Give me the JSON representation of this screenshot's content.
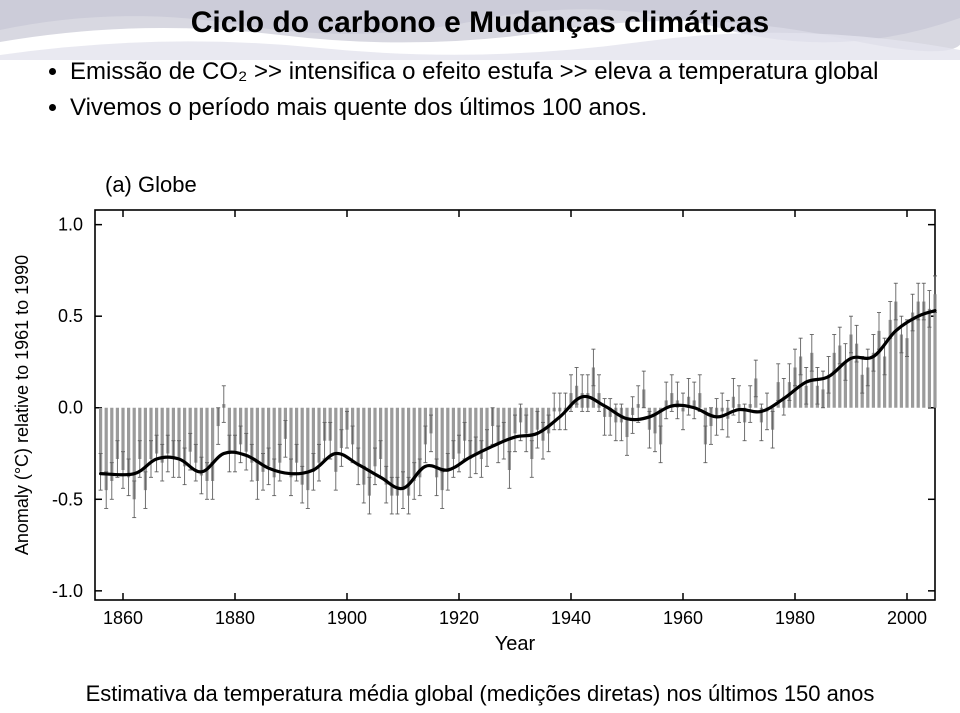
{
  "banner": {
    "wave_colors": [
      "#d8d8e4",
      "#b4b4c0",
      "#e4e4ee",
      "#c8c8d4"
    ],
    "bg": "#ffffff"
  },
  "title": "Ciclo do carbono e Mudanças climáticas",
  "bullets": [
    "Emissão de CO₂ >> intensifica o efeito estufa >> eleva a temperatura global",
    "Vivemos o período mais quente dos últimos 100 anos."
  ],
  "caption": "Estimativa da temperatura média global (medições diretas) nos últimos 150 anos",
  "chart": {
    "type": "line-with-bars",
    "panel_label": "(a)  Globe",
    "panel_label_fontsize": 22,
    "ylabel": "Anomaly (°C) relative to 1961 to 1990",
    "ylabel_fontsize": 18,
    "xlabel": "Year",
    "xlabel_fontsize": 20,
    "axis_fontsize": 18,
    "background_color": "#ffffff",
    "axis_color": "#000000",
    "bar_color": "#9b9b9b",
    "bar_width": 3.2,
    "bar_errorcap_color": "#606060",
    "line_color": "#000000",
    "line_width": 3.2,
    "tick_len": 7,
    "xlim": [
      1855,
      2005
    ],
    "ylim": [
      -1.05,
      1.08
    ],
    "xticks": [
      1860,
      1880,
      1900,
      1920,
      1940,
      1960,
      1980,
      2000
    ],
    "yticks": [
      -1.0,
      -0.5,
      0.0,
      0.5,
      1.0
    ],
    "years": [
      1856,
      1857,
      1858,
      1859,
      1860,
      1861,
      1862,
      1863,
      1864,
      1865,
      1866,
      1867,
      1868,
      1869,
      1870,
      1871,
      1872,
      1873,
      1874,
      1875,
      1876,
      1877,
      1878,
      1879,
      1880,
      1881,
      1882,
      1883,
      1884,
      1885,
      1886,
      1887,
      1888,
      1889,
      1890,
      1891,
      1892,
      1893,
      1894,
      1895,
      1896,
      1897,
      1898,
      1899,
      1900,
      1901,
      1902,
      1903,
      1904,
      1905,
      1906,
      1907,
      1908,
      1909,
      1910,
      1911,
      1912,
      1913,
      1914,
      1915,
      1916,
      1917,
      1918,
      1919,
      1920,
      1921,
      1922,
      1923,
      1924,
      1925,
      1926,
      1927,
      1928,
      1929,
      1930,
      1931,
      1932,
      1933,
      1934,
      1935,
      1936,
      1937,
      1938,
      1939,
      1940,
      1941,
      1942,
      1943,
      1944,
      1945,
      1946,
      1947,
      1948,
      1949,
      1950,
      1951,
      1952,
      1953,
      1954,
      1955,
      1956,
      1957,
      1958,
      1959,
      1960,
      1961,
      1962,
      1963,
      1964,
      1965,
      1966,
      1967,
      1968,
      1969,
      1970,
      1971,
      1972,
      1973,
      1974,
      1975,
      1976,
      1977,
      1978,
      1979,
      1980,
      1981,
      1982,
      1983,
      1984,
      1985,
      1986,
      1987,
      1988,
      1989,
      1990,
      1991,
      1992,
      1993,
      1994,
      1995,
      1996,
      1997,
      1998,
      1999,
      2000,
      2001,
      2002,
      2003,
      2004,
      2005
    ],
    "anomalies": [
      -0.35,
      -0.45,
      -0.4,
      -0.28,
      -0.34,
      -0.38,
      -0.5,
      -0.28,
      -0.45,
      -0.28,
      -0.25,
      -0.3,
      -0.25,
      -0.28,
      -0.28,
      -0.32,
      -0.24,
      -0.3,
      -0.37,
      -0.4,
      -0.4,
      -0.1,
      0.02,
      -0.25,
      -0.25,
      -0.2,
      -0.24,
      -0.3,
      -0.4,
      -0.35,
      -0.32,
      -0.38,
      -0.3,
      -0.17,
      -0.38,
      -0.3,
      -0.42,
      -0.45,
      -0.35,
      -0.3,
      -0.18,
      -0.18,
      -0.35,
      -0.22,
      -0.12,
      -0.2,
      -0.32,
      -0.42,
      -0.48,
      -0.32,
      -0.28,
      -0.42,
      -0.48,
      -0.48,
      -0.45,
      -0.48,
      -0.4,
      -0.38,
      -0.2,
      -0.14,
      -0.38,
      -0.45,
      -0.35,
      -0.28,
      -0.25,
      -0.18,
      -0.28,
      -0.26,
      -0.28,
      -0.22,
      -0.1,
      -0.2,
      -0.18,
      -0.34,
      -0.14,
      -0.08,
      -0.14,
      -0.28,
      -0.12,
      -0.18,
      -0.14,
      -0.02,
      -0.02,
      -0.02,
      0.08,
      0.12,
      0.08,
      0.08,
      0.22,
      0.08,
      -0.05,
      -0.05,
      -0.08,
      -0.08,
      -0.16,
      -0.04,
      0.02,
      0.1,
      -0.12,
      -0.14,
      -0.2,
      0.04,
      0.08,
      0.04,
      -0.02,
      0.06,
      0.04,
      0.08,
      -0.2,
      -0.1,
      -0.05,
      -0.02,
      -0.06,
      0.06,
      0.02,
      -0.08,
      0.02,
      0.16,
      -0.08,
      -0.02,
      -0.12,
      0.14,
      0.06,
      0.14,
      0.22,
      0.28,
      0.12,
      0.3,
      0.12,
      0.1,
      0.18,
      0.3,
      0.34,
      0.25,
      0.4,
      0.35,
      0.18,
      0.22,
      0.3,
      0.42,
      0.28,
      0.48,
      0.58,
      0.4,
      0.38,
      0.52,
      0.58,
      0.58,
      0.54,
      0.62
    ],
    "error_half": 0.1,
    "smoothed": [
      [
        1856,
        -0.36
      ],
      [
        1862,
        -0.36
      ],
      [
        1866,
        -0.28
      ],
      [
        1870,
        -0.28
      ],
      [
        1874,
        -0.35
      ],
      [
        1878,
        -0.25
      ],
      [
        1882,
        -0.26
      ],
      [
        1886,
        -0.33
      ],
      [
        1890,
        -0.36
      ],
      [
        1894,
        -0.34
      ],
      [
        1898,
        -0.25
      ],
      [
        1902,
        -0.31
      ],
      [
        1906,
        -0.38
      ],
      [
        1910,
        -0.44
      ],
      [
        1914,
        -0.32
      ],
      [
        1918,
        -0.34
      ],
      [
        1922,
        -0.27
      ],
      [
        1926,
        -0.21
      ],
      [
        1930,
        -0.16
      ],
      [
        1934,
        -0.14
      ],
      [
        1938,
        -0.05
      ],
      [
        1942,
        0.06
      ],
      [
        1946,
        0.01
      ],
      [
        1950,
        -0.06
      ],
      [
        1954,
        -0.05
      ],
      [
        1958,
        0.01
      ],
      [
        1962,
        0.0
      ],
      [
        1966,
        -0.05
      ],
      [
        1970,
        -0.01
      ],
      [
        1974,
        -0.02
      ],
      [
        1978,
        0.05
      ],
      [
        1982,
        0.14
      ],
      [
        1986,
        0.17
      ],
      [
        1990,
        0.27
      ],
      [
        1994,
        0.28
      ],
      [
        1998,
        0.42
      ],
      [
        2002,
        0.5
      ],
      [
        2005,
        0.53
      ]
    ]
  }
}
